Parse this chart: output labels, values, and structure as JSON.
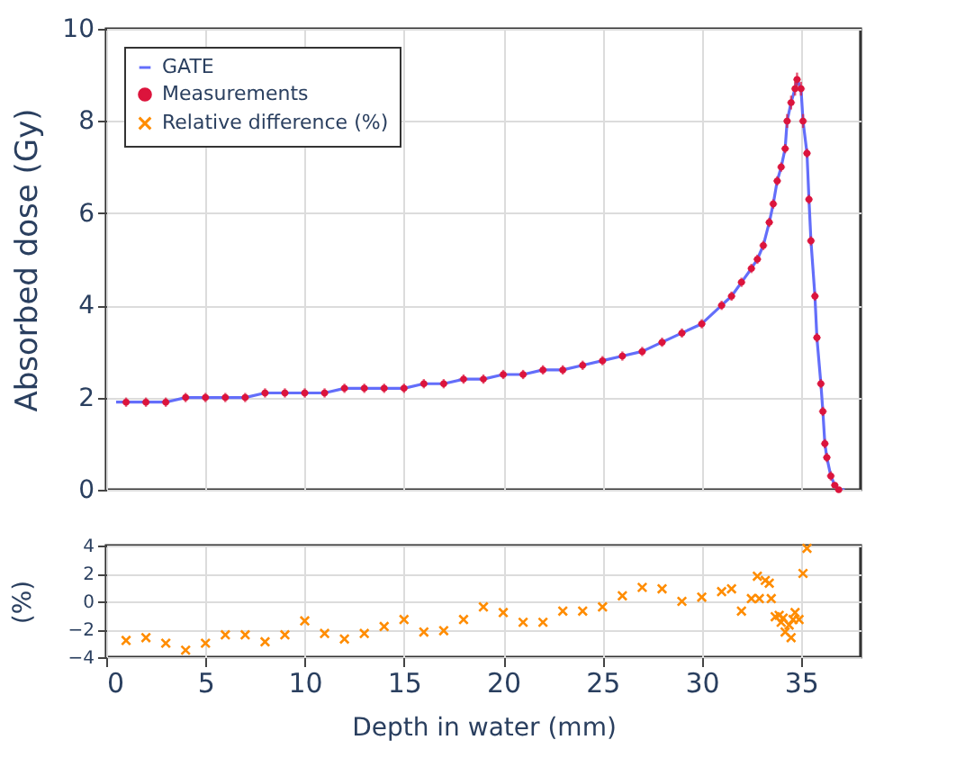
{
  "chart_data": [
    {
      "type": "line",
      "ylabel": "Absorbed dose (Gy)",
      "xlim": [
        0,
        38
      ],
      "xticks": [
        0,
        5,
        10,
        15,
        20,
        25,
        30,
        35
      ],
      "ylim": [
        0,
        10
      ],
      "yticks": [
        0,
        2,
        4,
        6,
        8,
        10
      ],
      "grid": true,
      "legend": "top left",
      "tick_labels": "y",
      "series": [
        {
          "name": "GATE",
          "color": "#636efa",
          "line_style": "solid",
          "x": [
            0.5,
            1,
            2,
            3,
            4,
            5,
            6,
            7,
            8,
            9,
            10,
            11,
            12,
            13,
            14,
            15,
            16,
            17,
            18,
            19,
            20,
            21,
            22,
            23,
            24,
            25,
            26,
            27,
            28,
            29,
            30,
            31,
            31.5,
            32,
            32.5,
            32.8,
            33.1,
            33.4,
            33.6,
            33.8,
            34.0,
            34.2,
            34.3,
            34.5,
            34.7,
            34.8,
            35.0,
            35.1,
            35.3,
            35.4,
            35.5,
            35.7,
            35.8,
            36.0,
            36.1,
            36.2,
            36.3,
            36.5,
            36.7,
            36.9,
            37.2
          ],
          "values": [
            1.9,
            1.9,
            1.9,
            1.9,
            2.0,
            2.0,
            2.0,
            2.0,
            2.1,
            2.1,
            2.1,
            2.1,
            2.2,
            2.2,
            2.2,
            2.2,
            2.3,
            2.3,
            2.4,
            2.4,
            2.5,
            2.5,
            2.6,
            2.6,
            2.7,
            2.8,
            2.9,
            3.0,
            3.2,
            3.4,
            3.6,
            4.0,
            4.2,
            4.5,
            4.8,
            5.0,
            5.3,
            5.8,
            6.2,
            6.7,
            7.0,
            7.4,
            8.0,
            8.4,
            8.7,
            8.9,
            8.7,
            8.0,
            7.3,
            6.3,
            5.4,
            4.2,
            3.3,
            2.3,
            1.7,
            1.0,
            0.7,
            0.3,
            0.1,
            0.0,
            0.0
          ]
        },
        {
          "name": "Measurements",
          "type": "scatter",
          "color": "#dc143c",
          "marker": "circle",
          "x": [
            1,
            2,
            3,
            4,
            5,
            6,
            7,
            8,
            9,
            10,
            11,
            12,
            13,
            14,
            15,
            16,
            17,
            18,
            19,
            20,
            21,
            22,
            23,
            24,
            25,
            26,
            27,
            28,
            29,
            30,
            31,
            31.5,
            32,
            32.5,
            32.8,
            33.1,
            33.4,
            33.6,
            33.8,
            34.0,
            34.2,
            34.3,
            34.5,
            34.7,
            34.8,
            35.0,
            35.1,
            35.3,
            35.4,
            35.5,
            35.7,
            35.8,
            36.0,
            36.1,
            36.2,
            36.3,
            36.5,
            36.7,
            36.9
          ],
          "values": [
            1.9,
            1.9,
            1.9,
            2.0,
            2.0,
            2.0,
            2.0,
            2.1,
            2.1,
            2.1,
            2.1,
            2.2,
            2.2,
            2.2,
            2.2,
            2.3,
            2.3,
            2.4,
            2.4,
            2.5,
            2.5,
            2.6,
            2.6,
            2.7,
            2.8,
            2.9,
            3.0,
            3.2,
            3.4,
            3.6,
            4.0,
            4.2,
            4.5,
            4.8,
            5.0,
            5.3,
            5.8,
            6.2,
            6.7,
            7.0,
            7.4,
            8.0,
            8.4,
            8.7,
            8.9,
            8.7,
            8.0,
            7.3,
            6.3,
            5.4,
            4.2,
            3.3,
            2.3,
            1.7,
            1.0,
            0.7,
            0.3,
            0.1,
            0.0
          ],
          "errors": [
            0.1,
            0.1,
            0.1,
            0.1,
            0.1,
            0.1,
            0.1,
            0.1,
            0.1,
            0.1,
            0.1,
            0.1,
            0.1,
            0.1,
            0.1,
            0.1,
            0.1,
            0.1,
            0.1,
            0.1,
            0.1,
            0.1,
            0.1,
            0.1,
            0.1,
            0.1,
            0.1,
            0.1,
            0.1,
            0.1,
            0.1,
            0.1,
            0.1,
            0.1,
            0.1,
            0.1,
            0.1,
            0.1,
            0.1,
            0.1,
            0.1,
            0.15,
            0.15,
            0.15,
            0.15,
            0.15,
            0.15,
            0.1,
            0.1,
            0.1,
            0.1,
            0.1,
            0.1,
            0.1,
            0.1,
            0.1,
            0.1,
            null,
            null
          ],
          "xerrors": [
            0.2,
            0.2,
            0.2,
            0.2,
            0.2,
            0.2,
            0.2,
            0.2,
            0.2,
            0.2,
            0.2,
            0.2,
            0.2,
            0.2,
            0.2,
            0.2,
            0.2,
            0.2,
            0.2,
            0.2,
            0.2,
            0.2,
            0.2,
            0.2,
            0.2,
            0.2,
            0.2,
            0.2,
            0.2,
            0.2,
            0.2,
            0.2,
            0.2,
            0.2,
            0.2,
            0.2,
            0.2,
            0.2,
            0.2,
            0.2,
            0.2,
            0.2,
            0.2,
            0.2,
            0.2,
            0.2,
            0.2,
            0.2,
            0.2,
            0.2,
            0.2,
            0.2,
            0.2,
            0.2,
            0.2,
            0.2,
            0.2,
            0.2,
            0.2
          ]
        }
      ]
    },
    {
      "type": "scatter",
      "xlabel": "Depth in water (mm)",
      "ylabel": "(%)",
      "xlim": [
        0,
        38
      ],
      "xticks": [
        0,
        5,
        10,
        15,
        20,
        25,
        30,
        35
      ],
      "ylim": [
        -4,
        4
      ],
      "yticks": [
        -4,
        -2,
        0,
        2,
        4
      ],
      "grid": true,
      "series": [
        {
          "name": "Relative difference (%)",
          "color": "#ff8c00",
          "marker": "cross",
          "x": [
            1,
            2,
            3,
            4,
            5,
            6,
            7,
            8,
            9,
            10,
            11,
            12,
            13,
            14,
            15,
            16,
            17,
            18,
            19,
            20,
            21,
            22,
            23,
            24,
            25,
            26,
            27,
            28,
            29,
            30,
            31,
            31.5,
            32,
            32.5,
            32.8,
            32.9,
            33.2,
            33.4,
            33.5,
            33.7,
            33.9,
            34.0,
            34.1,
            34.2,
            34.4,
            34.5,
            34.6,
            34.7,
            34.9,
            35.1,
            35.3
          ],
          "values": [
            -2.8,
            -2.6,
            -3.0,
            -3.5,
            -3.0,
            -2.4,
            -2.4,
            -2.9,
            -2.4,
            -1.4,
            -2.3,
            -2.7,
            -2.3,
            -1.8,
            -1.3,
            -2.2,
            -2.1,
            -1.3,
            -0.4,
            -0.8,
            -1.5,
            -1.5,
            -0.7,
            -0.7,
            -0.4,
            0.4,
            1.0,
            0.9,
            0.0,
            0.3,
            0.7,
            0.9,
            -0.7,
            0.2,
            1.8,
            0.2,
            1.5,
            1.3,
            0.2,
            -1.1,
            -1.0,
            -1.5,
            -1.2,
            -2.2,
            -1.7,
            -2.6,
            -1.3,
            -0.8,
            -1.3,
            2.0,
            3.8
          ]
        }
      ]
    }
  ]
}
